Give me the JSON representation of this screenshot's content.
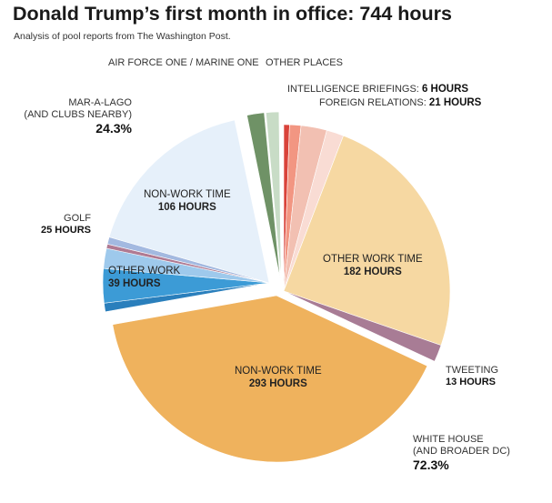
{
  "title": "Donald Trump’s first month in office: 744 hours",
  "subtitle": "Analysis of pool reports from The Washington Post.",
  "colors": {
    "whitehouse_nonwork": "#efb25d",
    "whitehouse_otherwork": "#f6d8a2",
    "tweeting": "#a87c95",
    "foreign_relations": "#f2c0b2",
    "foreign_relations_light": "#f9dcd4",
    "intel_light": "#f29682",
    "intel_dark": "#d9433a",
    "other_places": "#c8dcc6",
    "air_force_one": "#6f9266",
    "maralago_nonwork": "#e6f0fa",
    "golf": "#a3b9e0",
    "golf_stripe": "#b07a92",
    "maralago_light": "#9ec9ec",
    "maralago_otherwork": "#3c9bd6",
    "maralago_dark": "#2a7fbc"
  },
  "chart_data": {
    "type": "pie",
    "title": "Donald Trump’s first month in office: 744 hours",
    "subtitle": "Analysis of pool reports from The Washington Post.",
    "total_hours": 744,
    "groups": [
      {
        "name": "WHITE HOUSE (AND BROADER DC)",
        "percent": 72.3
      },
      {
        "name": "MAR-A-LAGO (AND CLUBS NEARBY)",
        "percent": 24.3
      },
      {
        "name": "AIR FORCE ONE / MARINE ONE"
      },
      {
        "name": "OTHER PLACES"
      }
    ],
    "slices": [
      {
        "name": "INTELLIGENCE BRIEFINGS",
        "hours": 6,
        "group": "WHITE HOUSE (AND BROADER DC)"
      },
      {
        "name": "FOREIGN RELATIONS",
        "hours": 21,
        "group": "WHITE HOUSE (AND BROADER DC)"
      },
      {
        "name": "OTHER WORK TIME",
        "hours": 182,
        "group": "WHITE HOUSE (AND BROADER DC)"
      },
      {
        "name": "TWEETING",
        "hours": 13,
        "group": "WHITE HOUSE (AND BROADER DC)"
      },
      {
        "name": "NON-WORK TIME",
        "hours": 293,
        "group": "WHITE HOUSE (AND BROADER DC)"
      },
      {
        "name": "OTHER WORK",
        "hours": 39,
        "group": "MAR-A-LAGO (AND CLUBS NEARBY)"
      },
      {
        "name": "GOLF",
        "hours": 25,
        "group": "MAR-A-LAGO (AND CLUBS NEARBY)"
      },
      {
        "name": "NON-WORK TIME",
        "hours": 106,
        "group": "MAR-A-LAGO (AND CLUBS NEARBY)"
      },
      {
        "name": "AIR FORCE ONE / MARINE ONE",
        "group": "AIR FORCE ONE / MARINE ONE"
      },
      {
        "name": "OTHER PLACES",
        "group": "OTHER PLACES"
      }
    ]
  },
  "labels": {
    "air_force_one": "AIR FORCE ONE / MARINE ONE",
    "other_places": "OTHER PLACES",
    "intel_name": "INTELLIGENCE BRIEFINGS:",
    "intel_hours": "6 HOURS",
    "foreign_name": "FOREIGN RELATIONS:",
    "foreign_hours": "21 HOURS",
    "maralago_line1": "MAR-A-LAGO",
    "maralago_line2": "(AND CLUBS NEARBY)",
    "maralago_pct": "24.3%",
    "golf_name": "GOLF",
    "golf_hours": "25 HOURS",
    "ml_nonwork_name": "NON-WORK TIME",
    "ml_nonwork_hours": "106 HOURS",
    "ml_otherwork_name": "OTHER WORK",
    "ml_otherwork_hours": "39 HOURS",
    "wh_otherwork_name": "OTHER WORK TIME",
    "wh_otherwork_hours": "182 HOURS",
    "wh_nonwork_name": "NON-WORK TIME",
    "wh_nonwork_hours": "293 HOURS",
    "tweeting_name": "TWEETING",
    "tweeting_hours": "13 HOURS",
    "whitehouse_line1": "WHITE HOUSE",
    "whitehouse_line2": "(AND BROADER DC)",
    "whitehouse_pct": "72.3%"
  }
}
